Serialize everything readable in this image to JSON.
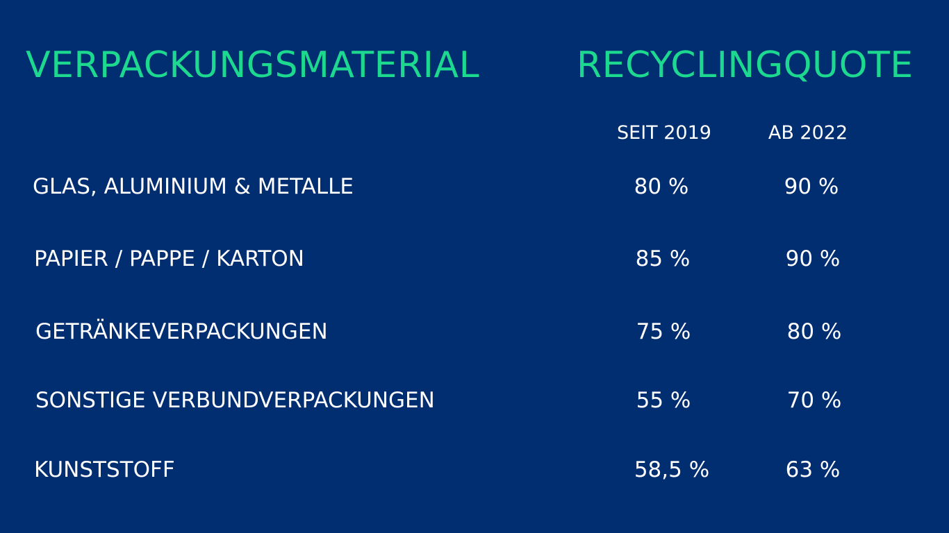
{
  "headers": {
    "material": "VERPACKUNGSMATERIAL",
    "quote": "RECYCLINGQUOTE"
  },
  "subheaders": {
    "since_2019": "SEIT 2019",
    "from_2022": "AB 2022"
  },
  "rows": [
    {
      "material": "GLAS, ALUMINIUM & METALLE",
      "since_2019": "80 %",
      "from_2022": "90 %"
    },
    {
      "material": "PAPIER / PAPPE / KARTON",
      "since_2019": "85 %",
      "from_2022": "90 %"
    },
    {
      "material": "GETRÄNKEVERPACKUNGEN",
      "since_2019": "75 %",
      "from_2022": "80 %"
    },
    {
      "material": "SONSTIGE VERBUNDVERPACKUNGEN",
      "since_2019": "55 %",
      "from_2022": "70 %"
    },
    {
      "material": "KUNSTSTOFF",
      "since_2019": "58,5 %",
      "from_2022": "63 %"
    }
  ],
  "colors": {
    "background": "#012d71",
    "heading": "#1dd98f",
    "text": "#ffffff"
  }
}
